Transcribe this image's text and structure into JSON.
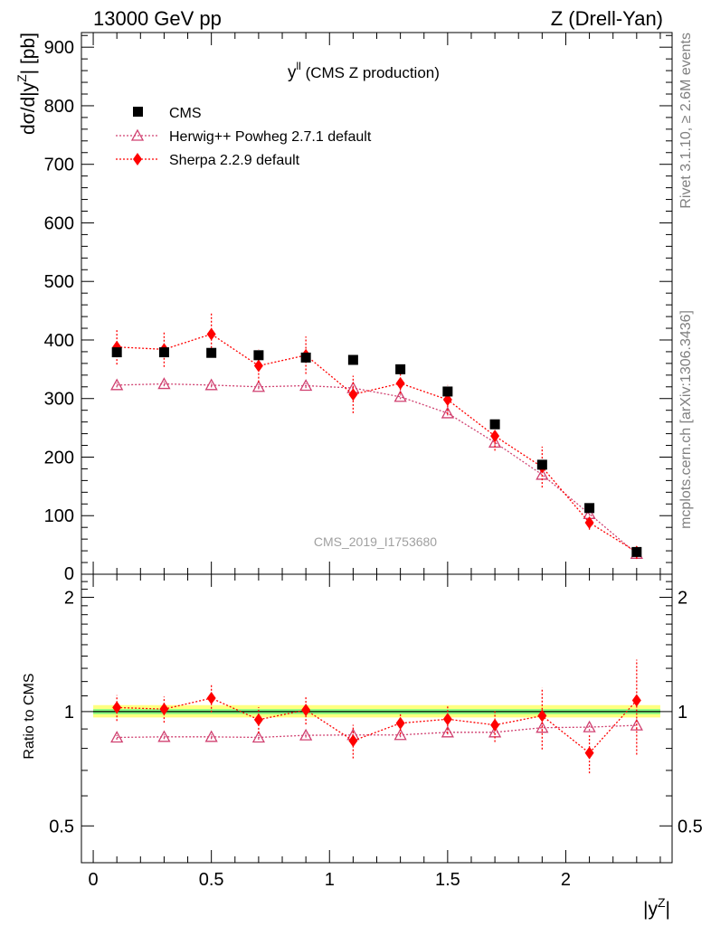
{
  "header": {
    "left": "13000 GeV pp",
    "right": "Z (Drell-Yan)"
  },
  "side_labels": {
    "upper": "Rivet 3.1.10, ≥ 2.6M events",
    "lower": "mcplots.cern.ch [arXiv:1306.3436]"
  },
  "watermark": "CMS_2019_I1753680",
  "main_title": {
    "symbol": "y",
    "superscript": "ll",
    "text": " (CMS Z production)"
  },
  "ylabel": {
    "prefix": "dσ/d|y",
    "superscript": "Z",
    "suffix": "| [pb]"
  },
  "xlabel": {
    "prefix": "|y",
    "superscript": "Z",
    "suffix": "|"
  },
  "ratio_ylabel": "Ratio to CMS",
  "legend": {
    "cms": "CMS",
    "herwig": "Herwig++ Powheg 2.7.1 default",
    "sherpa": "Sherpa 2.2.9 default"
  },
  "colors": {
    "cms": "#000000",
    "herwig": "#d04070",
    "sherpa": "#ff0000",
    "band_inner": "#80ff80",
    "band_outer": "#ffff80"
  },
  "chart_data": [
    {
      "type": "scatter",
      "panel": "main",
      "x": [
        0.1,
        0.3,
        0.5,
        0.7,
        0.9,
        1.1,
        1.3,
        1.5,
        1.7,
        1.9,
        2.1,
        2.3
      ],
      "xlim": [
        -0.05,
        2.45
      ],
      "ylim": [
        0,
        925
      ],
      "yticks": [
        {
          "v": 100,
          "label": "100"
        },
        {
          "v": 200,
          "label": "200"
        },
        {
          "v": 300,
          "label": "300"
        },
        {
          "v": 400,
          "label": "400"
        },
        {
          "v": 500,
          "label": "500"
        },
        {
          "v": 600,
          "label": "600"
        },
        {
          "v": 700,
          "label": "700"
        },
        {
          "v": 800,
          "label": "800"
        },
        {
          "v": 900,
          "label": "900"
        }
      ],
      "series": [
        {
          "name": "CMS",
          "y": [
            379,
            379,
            378,
            374,
            370,
            366,
            350,
            312,
            256,
            187,
            113,
            38
          ],
          "err": [
            6,
            6,
            6,
            6,
            6,
            6,
            6,
            6,
            5,
            4,
            3,
            2
          ]
        },
        {
          "name": "Herwig++ Powheg 2.7.1 default",
          "y": [
            323,
            325,
            323,
            320,
            322,
            318,
            303,
            275,
            225,
            170,
            103,
            35
          ],
          "err": [
            4,
            4,
            4,
            4,
            4,
            4,
            4,
            4,
            4,
            3,
            3,
            2
          ]
        },
        {
          "name": "Sherpa 2.2.9 default",
          "y": [
            388,
            384,
            410,
            356,
            374,
            307,
            326,
            298,
            236,
            183,
            88,
            38
          ],
          "err": [
            30,
            30,
            36,
            28,
            32,
            32,
            18,
            25,
            25,
            35,
            12,
            12
          ]
        }
      ]
    },
    {
      "type": "scatter",
      "panel": "ratio",
      "log_y": true,
      "x": [
        0.1,
        0.3,
        0.5,
        0.7,
        0.9,
        1.1,
        1.3,
        1.5,
        1.7,
        1.9,
        2.1,
        2.3
      ],
      "ylim": [
        0.4,
        2.3
      ],
      "yticks": [
        {
          "v": 0.5,
          "label": "0.5"
        },
        {
          "v": 1,
          "label": "1"
        },
        {
          "v": 2,
          "label": "2"
        }
      ],
      "xticks": [
        {
          "v": 0,
          "label": "0"
        },
        {
          "v": 0.5,
          "label": "0.5"
        },
        {
          "v": 1,
          "label": "1"
        },
        {
          "v": 1.5,
          "label": "1.5"
        },
        {
          "v": 2,
          "label": "2"
        }
      ],
      "band": {
        "x_range": [
          0,
          2.4
        ],
        "inner": [
          0.985,
          1.015
        ],
        "outer": [
          0.965,
          1.04
        ]
      },
      "series": [
        {
          "name": "Herwig++ Powheg 2.7.1 default",
          "y": [
            0.855,
            0.858,
            0.858,
            0.855,
            0.866,
            0.868,
            0.868,
            0.882,
            0.882,
            0.907,
            0.91,
            0.92
          ],
          "err": [
            0.012,
            0.012,
            0.012,
            0.012,
            0.012,
            0.012,
            0.012,
            0.012,
            0.015,
            0.015,
            0.02,
            0.02
          ]
        },
        {
          "name": "Sherpa 2.2.9 default",
          "y": [
            1.025,
            1.015,
            1.085,
            0.952,
            1.01,
            0.838,
            0.932,
            0.955,
            0.922,
            0.975,
            0.778,
            1.07
          ],
          "err": [
            0.08,
            0.08,
            0.09,
            0.075,
            0.085,
            0.085,
            0.06,
            0.08,
            0.09,
            0.18,
            0.09,
            0.3
          ]
        }
      ]
    }
  ]
}
